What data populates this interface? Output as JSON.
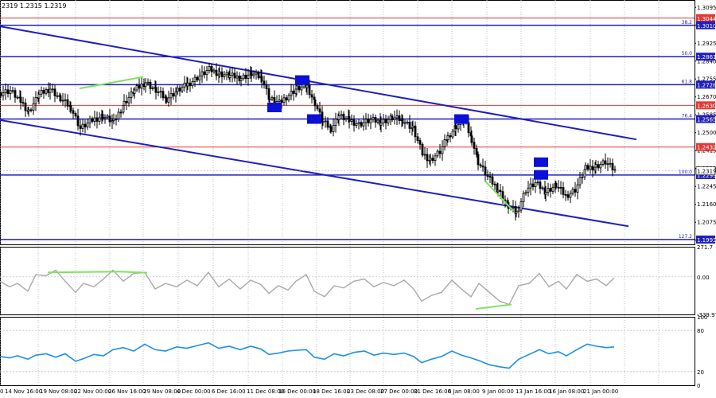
{
  "header": {
    "ohlc_text": "2319 1.2315 1.2319"
  },
  "chart_data": {
    "type": "candlestick",
    "symbol_panel": {
      "ylim": [
        1.197,
        1.313
      ],
      "price_axis_ticks": [
        "1.3095",
        "1.3010",
        "1.2925",
        "1.2840",
        "1.2755",
        "1.2670",
        "1.2585",
        "1.2500",
        "1.2415",
        "1.2330",
        "1.2245",
        "1.2160",
        "1.2075",
        "1.1990"
      ],
      "fib_levels": [
        {
          "label": "38.2",
          "price": 1.301
        },
        {
          "label": "50.0",
          "price": 1.2861
        },
        {
          "label": "61.8",
          "price": 1.2728
        },
        {
          "label": "76.4",
          "price": 1.2565
        },
        {
          "label": "100.0",
          "price": 1.2299
        },
        {
          "label": "127.2",
          "price": 1.1993
        }
      ],
      "horizontal_levels": [
        {
          "price": 1.3044,
          "label": "1.3044",
          "color": "#e53935",
          "kind": "support_resistance"
        },
        {
          "price": 1.301,
          "label": "1.3010",
          "color": "#1f1fbf",
          "kind": "fib"
        },
        {
          "price": 1.2861,
          "label": "1.2861",
          "color": "#1f1fbf",
          "kind": "fib"
        },
        {
          "price": 1.2728,
          "label": "1.2728",
          "color": "#1f1fbf",
          "kind": "fib"
        },
        {
          "price": 1.263,
          "label": "1.2630",
          "color": "#e53935",
          "kind": "support_resistance"
        },
        {
          "price": 1.2565,
          "label": "1.2565",
          "color": "#1f1fbf",
          "kind": "fib"
        },
        {
          "price": 1.2432,
          "label": "1.2432",
          "color": "#e53935",
          "kind": "support_resistance"
        },
        {
          "price": 1.2299,
          "label": "1.2299",
          "color": "#1f1fbf",
          "kind": "fib"
        },
        {
          "price": 1.1993,
          "label": "1.1993",
          "color": "#1f1fbf",
          "kind": "fib"
        }
      ],
      "current_price": {
        "price": 1.2319,
        "label": "1.2319"
      },
      "trend_channel": [
        {
          "from": [
            0,
            1.3005
          ],
          "to": [
            800,
            1.2468
          ]
        },
        {
          "from": [
            0,
            1.256
          ],
          "to": [
            790,
            1.2056
          ]
        }
      ],
      "marker_boxes": [
        {
          "x": 345,
          "price": 1.262
        },
        {
          "x": 380,
          "price": 1.275
        },
        {
          "x": 395,
          "price": 1.2565
        },
        {
          "x": 580,
          "price": 1.2565
        },
        {
          "x": 680,
          "price": 1.236
        },
        {
          "x": 680,
          "price": 1.23
        }
      ],
      "divergence_lines": [
        {
          "from": [
            100,
            1.271
          ],
          "to": [
            180,
            1.2765
          ]
        },
        {
          "from": [
            610,
            1.227
          ],
          "to": [
            645,
            1.213
          ]
        }
      ],
      "price_path": [
        [
          0,
          1.269
        ],
        [
          12,
          1.27
        ],
        [
          25,
          1.265
        ],
        [
          35,
          1.26
        ],
        [
          48,
          1.268
        ],
        [
          62,
          1.271
        ],
        [
          75,
          1.266
        ],
        [
          88,
          1.262
        ],
        [
          100,
          1.252
        ],
        [
          115,
          1.256
        ],
        [
          128,
          1.258
        ],
        [
          142,
          1.255
        ],
        [
          155,
          1.264
        ],
        [
          168,
          1.27
        ],
        [
          182,
          1.274
        ],
        [
          195,
          1.27
        ],
        [
          208,
          1.266
        ],
        [
          222,
          1.27
        ],
        [
          235,
          1.273
        ],
        [
          250,
          1.277
        ],
        [
          262,
          1.28
        ],
        [
          275,
          1.278
        ],
        [
          288,
          1.277
        ],
        [
          302,
          1.276
        ],
        [
          315,
          1.278
        ],
        [
          328,
          1.276
        ],
        [
          338,
          1.266
        ],
        [
          350,
          1.264
        ],
        [
          362,
          1.268
        ],
        [
          372,
          1.271
        ],
        [
          385,
          1.272
        ],
        [
          395,
          1.264
        ],
        [
          405,
          1.255
        ],
        [
          415,
          1.252
        ],
        [
          425,
          1.258
        ],
        [
          438,
          1.256
        ],
        [
          450,
          1.254
        ],
        [
          465,
          1.256
        ],
        [
          478,
          1.255
        ],
        [
          492,
          1.257
        ],
        [
          505,
          1.256
        ],
        [
          518,
          1.252
        ],
        [
          530,
          1.24
        ],
        [
          540,
          1.237
        ],
        [
          552,
          1.241
        ],
        [
          562,
          1.248
        ],
        [
          572,
          1.253
        ],
        [
          582,
          1.256
        ],
        [
          592,
          1.247
        ],
        [
          600,
          1.236
        ],
        [
          612,
          1.229
        ],
        [
          625,
          1.223
        ],
        [
          638,
          1.215
        ],
        [
          648,
          1.212
        ],
        [
          660,
          1.223
        ],
        [
          672,
          1.226
        ],
        [
          685,
          1.222
        ],
        [
          698,
          1.225
        ],
        [
          710,
          1.22
        ],
        [
          722,
          1.223
        ],
        [
          735,
          1.233
        ],
        [
          748,
          1.234
        ],
        [
          760,
          1.236
        ],
        [
          772,
          1.2319
        ]
      ]
    },
    "cci_panel": {
      "ylim": [
        -339.978,
        271.7
      ],
      "ticks": [
        "271.7",
        "0.00",
        "-339.978"
      ],
      "divergence_lines": [
        {
          "from": [
            60,
            40
          ],
          "to": [
            150,
            47
          ]
        },
        {
          "from": [
            150,
            47
          ],
          "to": [
            185,
            37
          ]
        },
        {
          "from": [
            598,
            -290
          ],
          "to": [
            643,
            -250
          ]
        }
      ],
      "values": [
        [
          0,
          -40
        ],
        [
          12,
          -90
        ],
        [
          22,
          -60
        ],
        [
          35,
          -130
        ],
        [
          45,
          20
        ],
        [
          58,
          10
        ],
        [
          70,
          60
        ],
        [
          82,
          -40
        ],
        [
          95,
          -140
        ],
        [
          105,
          -60
        ],
        [
          118,
          -90
        ],
        [
          130,
          -20
        ],
        [
          142,
          60
        ],
        [
          155,
          -40
        ],
        [
          168,
          30
        ],
        [
          182,
          40
        ],
        [
          195,
          -110
        ],
        [
          208,
          -60
        ],
        [
          222,
          -90
        ],
        [
          235,
          -30
        ],
        [
          248,
          -80
        ],
        [
          262,
          40
        ],
        [
          275,
          -90
        ],
        [
          288,
          -20
        ],
        [
          302,
          -110
        ],
        [
          315,
          -30
        ],
        [
          328,
          -70
        ],
        [
          338,
          -150
        ],
        [
          350,
          -80
        ],
        [
          362,
          -120
        ],
        [
          372,
          -40
        ],
        [
          385,
          20
        ],
        [
          395,
          -130
        ],
        [
          408,
          -180
        ],
        [
          420,
          -80
        ],
        [
          432,
          -100
        ],
        [
          445,
          -40
        ],
        [
          458,
          -20
        ],
        [
          470,
          -90
        ],
        [
          482,
          -50
        ],
        [
          495,
          -80
        ],
        [
          508,
          -30
        ],
        [
          520,
          -110
        ],
        [
          530,
          -220
        ],
        [
          542,
          -170
        ],
        [
          555,
          -140
        ],
        [
          568,
          -30
        ],
        [
          580,
          -110
        ],
        [
          592,
          -180
        ],
        [
          602,
          -60
        ],
        [
          615,
          -140
        ],
        [
          628,
          -220
        ],
        [
          640,
          -250
        ],
        [
          652,
          -80
        ],
        [
          665,
          -60
        ],
        [
          678,
          30
        ],
        [
          690,
          -90
        ],
        [
          702,
          -40
        ],
        [
          712,
          -110
        ],
        [
          725,
          20
        ],
        [
          738,
          -40
        ],
        [
          750,
          -20
        ],
        [
          762,
          -80
        ],
        [
          772,
          -10
        ]
      ]
    },
    "rsi_panel": {
      "ylim": [
        0,
        100
      ],
      "ticks": [
        "100",
        "80",
        "20",
        "0"
      ],
      "reference_levels": [
        80,
        20
      ],
      "values": [
        [
          0,
          42
        ],
        [
          12,
          40
        ],
        [
          22,
          43
        ],
        [
          35,
          38
        ],
        [
          45,
          44
        ],
        [
          58,
          46
        ],
        [
          70,
          41
        ],
        [
          82,
          46
        ],
        [
          95,
          35
        ],
        [
          105,
          39
        ],
        [
          118,
          45
        ],
        [
          130,
          43
        ],
        [
          142,
          52
        ],
        [
          155,
          55
        ],
        [
          168,
          50
        ],
        [
          182,
          60
        ],
        [
          195,
          52
        ],
        [
          208,
          50
        ],
        [
          222,
          56
        ],
        [
          235,
          54
        ],
        [
          248,
          58
        ],
        [
          262,
          62
        ],
        [
          275,
          54
        ],
        [
          288,
          57
        ],
        [
          302,
          52
        ],
        [
          315,
          57
        ],
        [
          328,
          53
        ],
        [
          338,
          45
        ],
        [
          350,
          47
        ],
        [
          362,
          50
        ],
        [
          372,
          51
        ],
        [
          385,
          52
        ],
        [
          395,
          41
        ],
        [
          408,
          38
        ],
        [
          420,
          46
        ],
        [
          432,
          43
        ],
        [
          445,
          48
        ],
        [
          458,
          50
        ],
        [
          470,
          44
        ],
        [
          482,
          47
        ],
        [
          495,
          45
        ],
        [
          508,
          47
        ],
        [
          520,
          42
        ],
        [
          530,
          33
        ],
        [
          542,
          38
        ],
        [
          555,
          42
        ],
        [
          568,
          50
        ],
        [
          580,
          44
        ],
        [
          592,
          40
        ],
        [
          602,
          36
        ],
        [
          615,
          30
        ],
        [
          628,
          27
        ],
        [
          640,
          25
        ],
        [
          652,
          38
        ],
        [
          665,
          45
        ],
        [
          678,
          52
        ],
        [
          690,
          46
        ],
        [
          702,
          49
        ],
        [
          712,
          43
        ],
        [
          725,
          52
        ],
        [
          738,
          60
        ],
        [
          750,
          57
        ],
        [
          762,
          55
        ],
        [
          772,
          56
        ]
      ]
    },
    "time_axis_labels": [
      "0",
      "14 Nov 16:00",
      "19 Nov 08:00",
      "22 Nov 00:00",
      "26 Nov 16:00",
      "29 Nov 08:00",
      "4 Dec 00:00",
      "6 Dec 16:00",
      "11 Dec 08:00",
      "16 Dec 00:00",
      "18 Dec 16:00",
      "23 Dec 08:00",
      "27 Dec 00:00",
      "31 Dec 16:00",
      "6 Jan 08:00",
      "9 Jan 00:00",
      "13 Jan 16:00",
      "16 Jan 08:00",
      "21 Jan 00:00"
    ]
  }
}
